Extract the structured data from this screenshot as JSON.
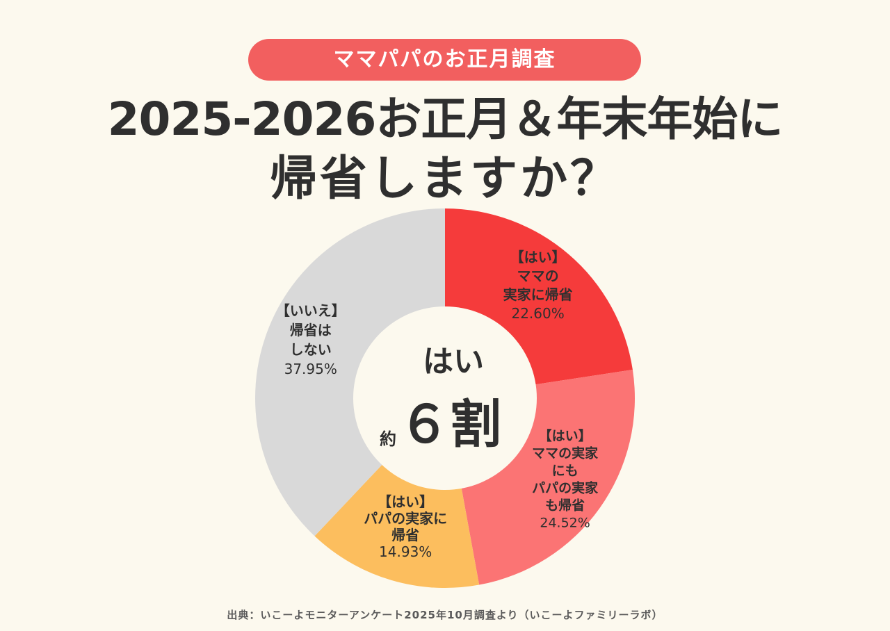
{
  "header": {
    "badge": "ママパパのお正月調査",
    "title_line1": "2025-2026お正月＆年末年始に",
    "title_line2": "帰省しますか？"
  },
  "center": {
    "line1": "はい",
    "approx": "約",
    "big": "６割"
  },
  "footer": {
    "source": "出典：いこーよモニターアンケート2025年10月調査より（いこーよファミリーラボ）"
  },
  "chart_data": {
    "type": "pie",
    "donut": true,
    "title": "2025-2026お正月＆年末年始に帰省しますか？",
    "slices": [
      {
        "label_lines": [
          "【はい】",
          "ママの",
          "実家に帰省"
        ],
        "value": 22.6,
        "value_text": "22.60%",
        "color": "#f53b3b"
      },
      {
        "label_lines": [
          "【はい】",
          "ママの実家",
          "にも",
          "パパの実家",
          "も帰省"
        ],
        "value": 24.52,
        "value_text": "24.52%",
        "color": "#fb7474"
      },
      {
        "label_lines": [
          "【はい】",
          "パパの実家に",
          "帰省"
        ],
        "value": 14.93,
        "value_text": "14.93%",
        "color": "#fcbe5e"
      },
      {
        "label_lines": [
          "【いいえ】",
          "帰省は",
          "しない"
        ],
        "value": 37.95,
        "value_text": "37.95%",
        "color": "#d9d9d9"
      }
    ]
  }
}
